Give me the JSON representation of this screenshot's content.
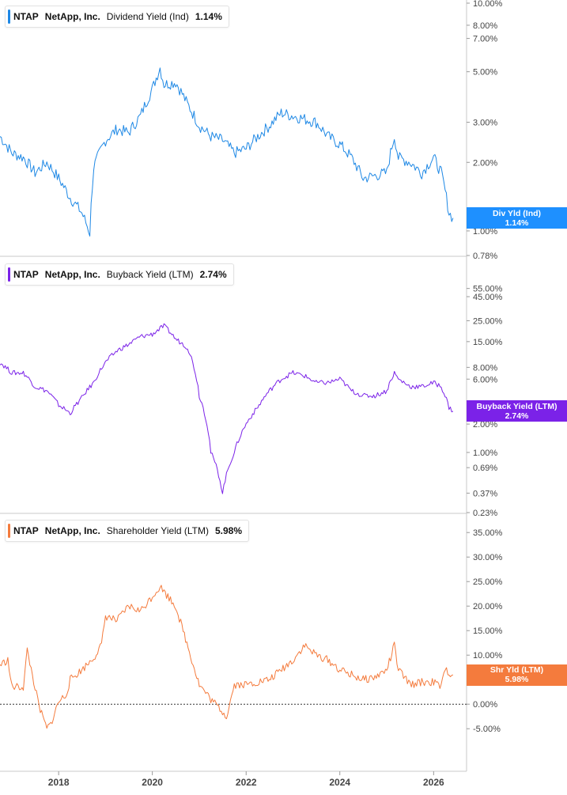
{
  "chart_data": [
    {
      "type": "line",
      "ticker": "NTAP",
      "company": "NetApp, Inc.",
      "metric": "Dividend Yield (Ind)",
      "current_value": "1.14%",
      "tag_label": "Div Yld (Ind)",
      "color": "#1e88e5",
      "y_scale": "log",
      "ylim": [
        0.78,
        10.0
      ],
      "y_ticks": [
        {
          "v": 10.0,
          "label": "10.00%"
        },
        {
          "v": 8.0,
          "label": "8.00%"
        },
        {
          "v": 7.0,
          "label": "7.00%"
        },
        {
          "v": 5.0,
          "label": "5.00%"
        },
        {
          "v": 3.0,
          "label": "3.00%"
        },
        {
          "v": 2.0,
          "label": "2.00%"
        },
        {
          "v": 1.0,
          "label": "1.00%"
        },
        {
          "v": 0.78,
          "label": "0.78%"
        }
      ],
      "x": [
        "2016-10",
        "2017-01",
        "2017-04",
        "2017-07",
        "2017-10",
        "2018-01",
        "2018-04",
        "2018-07",
        "2018-09",
        "2018-10",
        "2019-01",
        "2019-04",
        "2019-07",
        "2019-10",
        "2020-01",
        "2020-03",
        "2020-04",
        "2020-07",
        "2020-10",
        "2021-01",
        "2021-04",
        "2021-07",
        "2021-10",
        "2022-01",
        "2022-04",
        "2022-07",
        "2022-10",
        "2023-01",
        "2023-04",
        "2023-07",
        "2023-10",
        "2024-01",
        "2024-04",
        "2024-07",
        "2024-10",
        "2025-01",
        "2025-03",
        "2025-04",
        "2025-07",
        "2025-10",
        "2026-01",
        "2026-03",
        "2026-05",
        "2026-06"
      ],
      "values": [
        2.6,
        2.2,
        2.1,
        1.8,
        2.0,
        1.7,
        1.4,
        1.2,
        0.98,
        1.9,
        2.5,
        2.8,
        2.7,
        3.2,
        4.2,
        5.2,
        4.4,
        4.5,
        3.6,
        2.9,
        2.6,
        2.5,
        2.2,
        2.3,
        2.6,
        2.9,
        3.3,
        3.2,
        3.1,
        3.0,
        2.6,
        2.4,
        2.1,
        1.7,
        1.75,
        1.8,
        2.6,
        2.1,
        2.0,
        1.8,
        2.1,
        1.8,
        1.2,
        1.14
      ]
    },
    {
      "type": "line",
      "ticker": "NTAP",
      "company": "NetApp, Inc.",
      "metric": "Buyback Yield (LTM)",
      "current_value": "2.74%",
      "tag_label": "Buyback Yield (LTM)",
      "color": "#7b22e8",
      "y_scale": "log",
      "ylim": [
        0.23,
        65.0
      ],
      "y_ticks": [
        {
          "v": 55.0,
          "label": "55.00%"
        },
        {
          "v": 45.0,
          "label": "45.00%"
        },
        {
          "v": 25.0,
          "label": "25.00%"
        },
        {
          "v": 15.0,
          "label": "15.00%"
        },
        {
          "v": 8.0,
          "label": "8.00%"
        },
        {
          "v": 6.0,
          "label": "6.00%"
        },
        {
          "v": 2.0,
          "label": "2.00%"
        },
        {
          "v": 1.0,
          "label": "1.00%"
        },
        {
          "v": 0.69,
          "label": "0.69%"
        },
        {
          "v": 0.37,
          "label": "0.37%"
        },
        {
          "v": 0.23,
          "label": "0.23%"
        }
      ],
      "x": [
        "2016-10",
        "2017-01",
        "2017-04",
        "2017-07",
        "2017-10",
        "2018-01",
        "2018-04",
        "2018-07",
        "2018-10",
        "2019-01",
        "2019-04",
        "2019-07",
        "2019-10",
        "2020-01",
        "2020-04",
        "2020-07",
        "2020-10",
        "2021-01",
        "2021-04",
        "2021-07",
        "2021-10",
        "2022-01",
        "2022-04",
        "2022-07",
        "2022-10",
        "2023-01",
        "2023-04",
        "2023-07",
        "2023-10",
        "2024-01",
        "2024-04",
        "2024-07",
        "2024-10",
        "2025-01",
        "2025-03",
        "2025-04",
        "2025-07",
        "2025-10",
        "2026-01",
        "2026-03",
        "2026-05",
        "2026-06"
      ],
      "values": [
        9.0,
        7.0,
        7.0,
        5.0,
        4.5,
        3.2,
        2.6,
        3.8,
        5.5,
        9.0,
        12.0,
        14.0,
        17.0,
        18.0,
        22.0,
        16.0,
        13.0,
        4.0,
        1.0,
        0.37,
        1.0,
        2.0,
        3.0,
        4.5,
        6.0,
        7.0,
        6.5,
        5.5,
        5.5,
        6.0,
        4.5,
        4.0,
        4.0,
        4.5,
        7.0,
        6.0,
        5.0,
        5.0,
        5.5,
        5.0,
        3.0,
        2.74
      ]
    },
    {
      "type": "line",
      "ticker": "NTAP",
      "company": "NetApp, Inc.",
      "metric": "Shareholder Yield (LTM)",
      "current_value": "5.98%",
      "tag_label": "Shr Yld (LTM)",
      "color": "#f47b3d",
      "y_scale": "linear",
      "ylim": [
        -9.0,
        36.0
      ],
      "zero_line": true,
      "y_ticks": [
        {
          "v": 35.0,
          "label": "35.00%"
        },
        {
          "v": 30.0,
          "label": "30.00%"
        },
        {
          "v": 25.0,
          "label": "25.00%"
        },
        {
          "v": 20.0,
          "label": "20.00%"
        },
        {
          "v": 15.0,
          "label": "15.00%"
        },
        {
          "v": 10.0,
          "label": "10.00%"
        },
        {
          "v": 5.0,
          "label": "5.00%"
        },
        {
          "v": 0.0,
          "label": "0.00%"
        },
        {
          "v": -5.0,
          "label": "-5.00%"
        }
      ],
      "x": [
        "2016-10",
        "2016-12",
        "2017-01",
        "2017-04",
        "2017-05",
        "2017-08",
        "2017-10",
        "2017-11",
        "2018-01",
        "2018-03",
        "2018-04",
        "2018-07",
        "2018-10",
        "2018-12",
        "2019-01",
        "2019-04",
        "2019-07",
        "2019-10",
        "2020-01",
        "2020-03",
        "2020-07",
        "2021-01",
        "2021-04",
        "2021-07",
        "2021-08",
        "2021-10",
        "2022-01",
        "2022-07",
        "2023-01",
        "2023-04",
        "2023-07",
        "2023-10",
        "2024-01",
        "2024-04",
        "2024-07",
        "2024-10",
        "2025-01",
        "2025-03",
        "2025-04",
        "2025-07",
        "2025-10",
        "2026-01",
        "2026-03",
        "2026-04",
        "2026-06"
      ],
      "values": [
        8.0,
        9.0,
        3.5,
        3.5,
        11.0,
        -0.5,
        -5.0,
        -4.0,
        0.5,
        2.0,
        5.0,
        7.0,
        9.5,
        12.0,
        18.0,
        17.0,
        20.0,
        19.0,
        22.0,
        24.0,
        20.0,
        4.0,
        1.0,
        -1.5,
        -2.5,
        4.0,
        4.0,
        5.0,
        9.0,
        12.0,
        10.0,
        9.0,
        7.0,
        6.0,
        5.0,
        5.5,
        7.0,
        12.0,
        7.0,
        4.0,
        4.5,
        4.5,
        3.5,
        7.0,
        5.98
      ]
    }
  ],
  "x_axis": {
    "ticks": [
      {
        "date": "2018-01",
        "label": "2018"
      },
      {
        "date": "2020-01",
        "label": "2020"
      },
      {
        "date": "2022-01",
        "label": "2022"
      },
      {
        "date": "2024-01",
        "label": "2024"
      },
      {
        "date": "2026-01",
        "label": "2026"
      }
    ]
  }
}
